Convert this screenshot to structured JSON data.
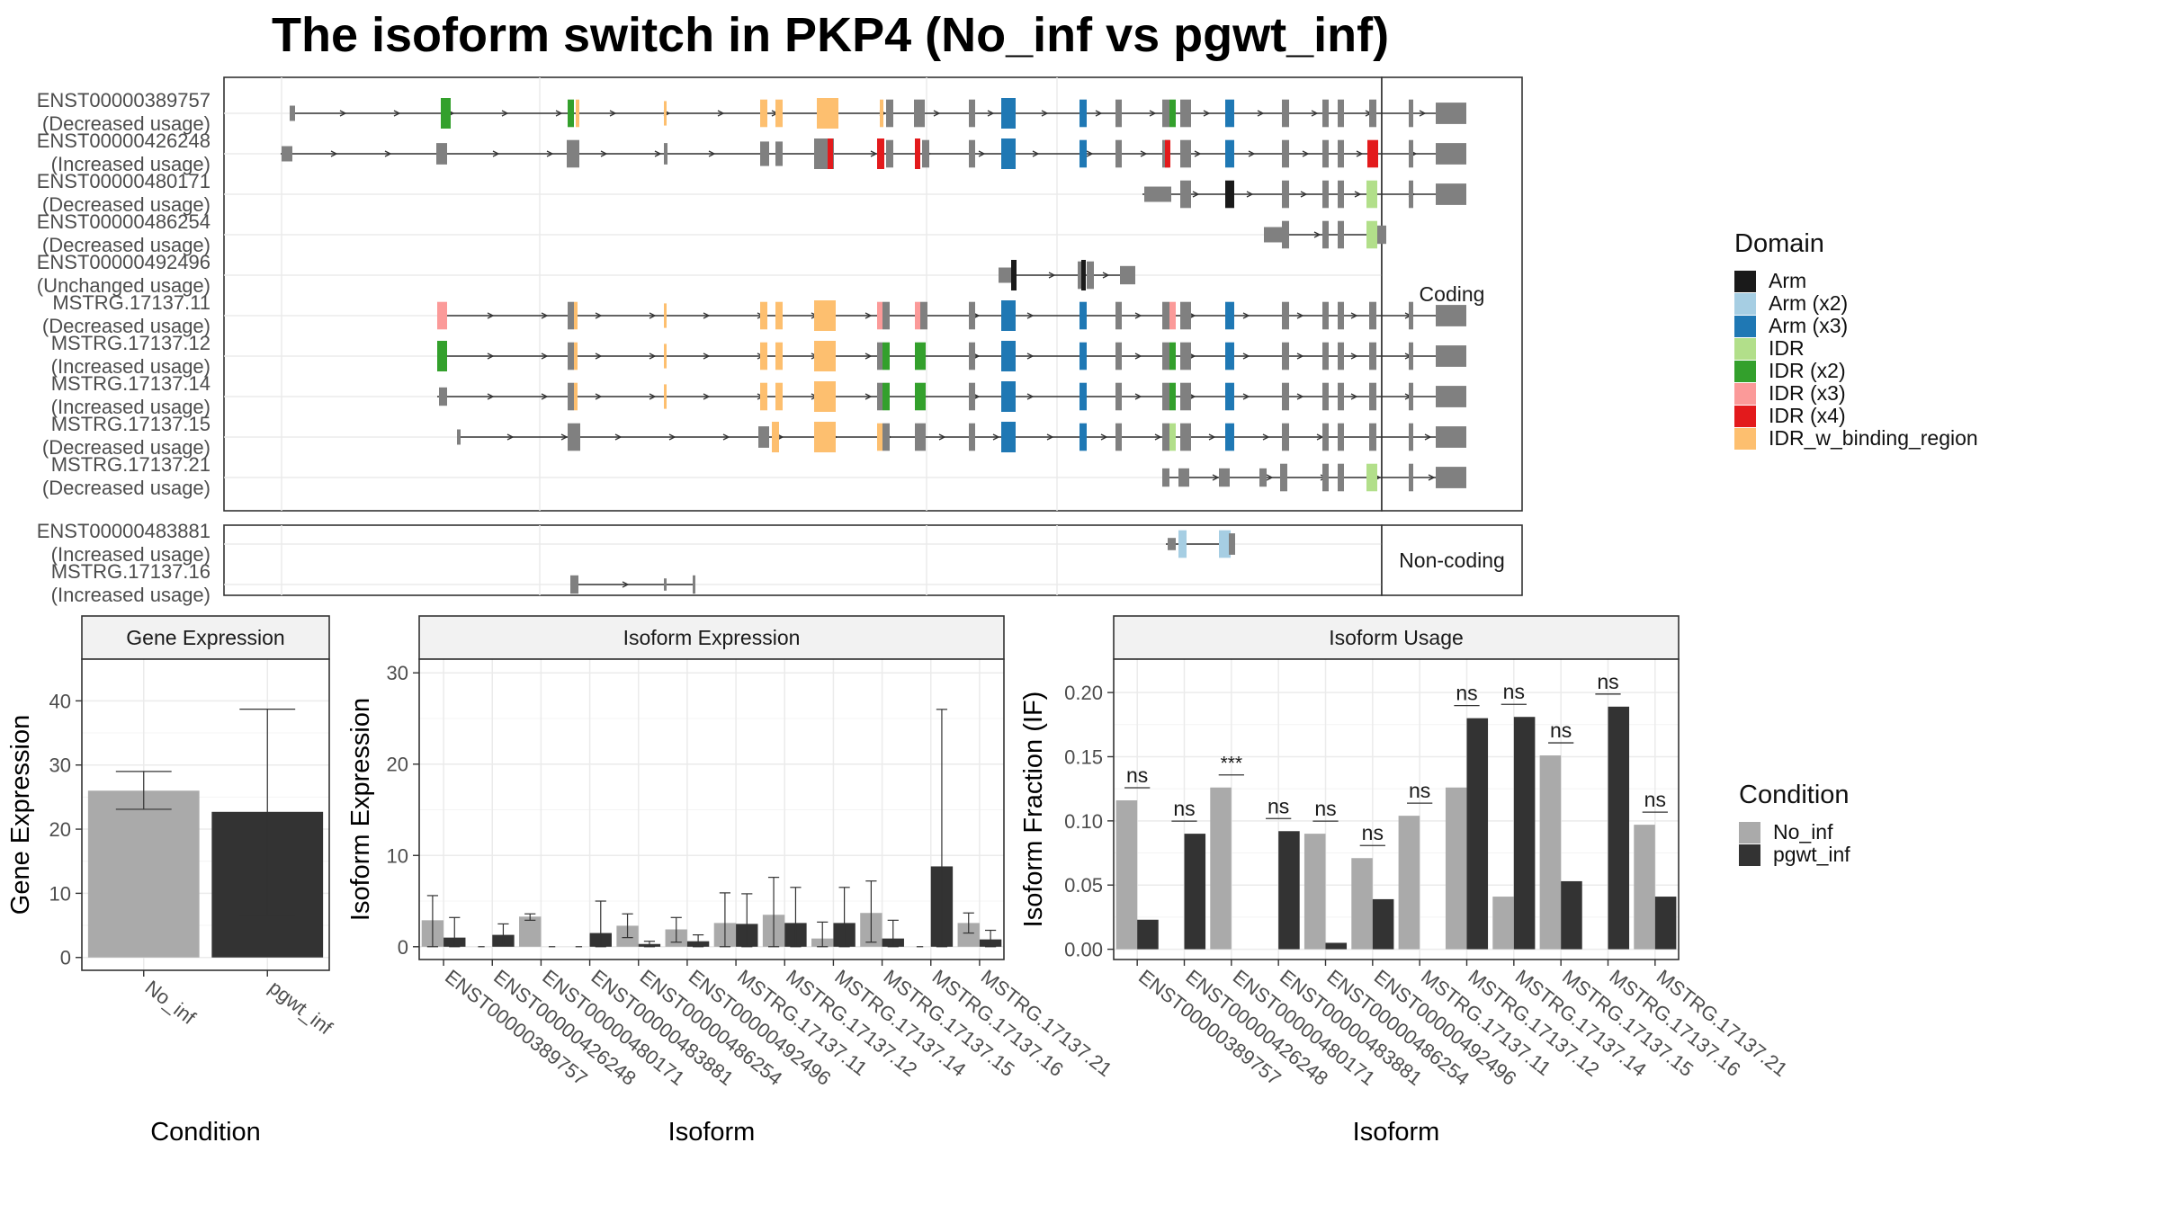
{
  "title": "The isoform switch in PKP4 (No_inf vs pgwt_inf)",
  "colors": {
    "Arm": "#1a1a1a",
    "Arm (x2)": "#a6cee3",
    "Arm (x3)": "#1f78b4",
    "IDR": "#b2df8a",
    "IDR (x2)": "#33a02c",
    "IDR (x3)": "#fb9a99",
    "IDR (x4)": "#e31a1c",
    "IDR_w_binding_region": "#fdbf6f",
    "exon": "#808080",
    "No_inf": "#aaaaaa",
    "pgwt_inf": "#333333"
  },
  "legend_domain": {
    "title": "Domain",
    "items": [
      "Arm",
      "Arm (x2)",
      "Arm (x3)",
      "IDR",
      "IDR (x2)",
      "IDR (x3)",
      "IDR (x4)",
      "IDR_w_binding_region"
    ]
  },
  "legend_condition": {
    "title": "Condition",
    "items": [
      "No_inf",
      "pgwt_inf"
    ]
  },
  "chart_data": [
    {
      "type": "gene-structure",
      "facets": [
        "Coding",
        "Non-coding"
      ],
      "isoforms": [
        {
          "name": "ENST00000389757",
          "status": "(Decreased usage)",
          "group": "Coding"
        },
        {
          "name": "ENST00000426248",
          "status": "(Increased usage)",
          "group": "Coding"
        },
        {
          "name": "ENST00000480171",
          "status": "(Decreased usage)",
          "group": "Coding"
        },
        {
          "name": "ENST00000486254",
          "status": "(Decreased usage)",
          "group": "Coding"
        },
        {
          "name": "ENST00000492496",
          "status": "(Unchanged usage)",
          "group": "Coding"
        },
        {
          "name": "MSTRG.17137.11",
          "status": "(Decreased usage)",
          "group": "Coding"
        },
        {
          "name": "MSTRG.17137.12",
          "status": "(Increased usage)",
          "group": "Coding"
        },
        {
          "name": "MSTRG.17137.14",
          "status": "(Increased usage)",
          "group": "Coding"
        },
        {
          "name": "MSTRG.17137.15",
          "status": "(Decreased usage)",
          "group": "Coding"
        },
        {
          "name": "MSTRG.17137.21",
          "status": "(Decreased usage)",
          "group": "Coding"
        },
        {
          "name": "ENST00000483881",
          "status": "(Increased usage)",
          "group": "Non-coding"
        },
        {
          "name": "MSTRG.17137.16",
          "status": "(Increased usage)",
          "group": "Non-coding"
        }
      ]
    },
    {
      "type": "bar",
      "title": "Gene Expression",
      "xlabel": "Condition",
      "ylabel": "Gene Expression",
      "categories": [
        "No_inf",
        "pgwt_inf"
      ],
      "values": [
        26.0,
        22.7
      ],
      "err_low": [
        23.1,
        6.6
      ],
      "err_high": [
        29.0,
        38.7
      ],
      "yticks": [
        0,
        10,
        20,
        30,
        40
      ],
      "ylim": [
        -2,
        46.5
      ],
      "grid": true
    },
    {
      "type": "bar",
      "title": "Isoform Expression",
      "xlabel": "Isoform",
      "ylabel": "Isoform Expression",
      "categories": [
        "ENST00000389757",
        "ENST00000426248",
        "ENST00000480171",
        "ENST00000483881",
        "ENST00000486254",
        "ENST00000492496",
        "MSTRG.17137.11",
        "MSTRG.17137.12",
        "MSTRG.17137.14",
        "MSTRG.17137.15",
        "MSTRG.17137.16",
        "MSTRG.17137.21"
      ],
      "yticks": [
        0,
        10,
        20,
        30
      ],
      "ylim": [
        -1.4,
        31.5
      ],
      "grid": true,
      "series": [
        {
          "name": "No_inf",
          "values": [
            2.9,
            0,
            3.3,
            0,
            2.3,
            1.9,
            2.6,
            3.5,
            0.9,
            3.7,
            0,
            2.6
          ],
          "err_low": [
            0,
            0,
            2.9,
            0,
            1.0,
            0.5,
            0,
            0,
            0,
            0.5,
            0,
            1.5
          ],
          "err_high": [
            5.6,
            0,
            3.6,
            0,
            3.6,
            3.2,
            5.9,
            7.6,
            2.7,
            7.2,
            0,
            3.7
          ]
        },
        {
          "name": "pgwt_inf",
          "values": [
            1.0,
            1.3,
            0,
            1.5,
            0.3,
            0.6,
            2.5,
            2.6,
            2.6,
            0.9,
            8.8,
            0.8
          ],
          "err_low": [
            0,
            0.2,
            0,
            0,
            0,
            0,
            0,
            0,
            0,
            0,
            0,
            0
          ],
          "err_high": [
            3.2,
            2.5,
            0,
            5.0,
            0.6,
            1.3,
            5.8,
            6.5,
            6.5,
            2.9,
            26.0,
            1.8
          ]
        }
      ]
    },
    {
      "type": "bar",
      "title": "Isoform Usage",
      "xlabel": "Isoform",
      "ylabel": "Isoform Fraction (IF)",
      "categories": [
        "ENST00000389757",
        "ENST00000426248",
        "ENST00000480171",
        "ENST00000483881",
        "ENST00000486254",
        "ENST00000492496",
        "MSTRG.17137.11",
        "MSTRG.17137.12",
        "MSTRG.17137.14",
        "MSTRG.17137.15",
        "MSTRG.17137.16",
        "MSTRG.17137.21"
      ],
      "yticks": [
        0.0,
        0.05,
        0.1,
        0.15,
        0.2
      ],
      "ytick_labels": [
        "0.00",
        "0.05",
        "0.10",
        "0.15",
        "0.20"
      ],
      "ylim": [
        -0.008,
        0.226
      ],
      "grid": true,
      "significance": [
        "ns",
        "ns",
        "***",
        "ns",
        "ns",
        "ns",
        "ns",
        "ns",
        "ns",
        "ns",
        "ns",
        "ns"
      ],
      "series": [
        {
          "name": "No_inf",
          "values": [
            0.116,
            0,
            0.126,
            0,
            0.09,
            0.071,
            0.104,
            0.126,
            0.041,
            0.151,
            0,
            0.097
          ]
        },
        {
          "name": "pgwt_inf",
          "values": [
            0.023,
            0.09,
            0,
            0.092,
            0.005,
            0.039,
            0,
            0.18,
            0.181,
            0.053,
            0.189,
            0.041
          ]
        }
      ]
    }
  ]
}
